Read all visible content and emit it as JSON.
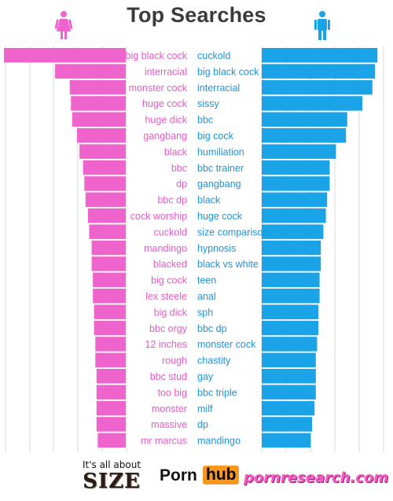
{
  "chart_data": {
    "type": "bar",
    "title": "Top Searches",
    "colors": {
      "female": "#ee64cc",
      "male": "#1aa3e7",
      "female_text": "#e55ac8",
      "male_text": "#1e93d8",
      "grid": "#d8d8d8"
    },
    "icons": {
      "female": "female-person-icon",
      "male": "male-person-icon"
    },
    "series": [
      {
        "name": "female",
        "labels": [
          "big black cock",
          "interracial",
          "monster cock",
          "huge cock",
          "huge dick",
          "gangbang",
          "black",
          "bbc",
          "dp",
          "bbc dp",
          "cock worship",
          "cuckold",
          "mandingo",
          "blacked",
          "big cock",
          "lex steele",
          "big dick",
          "bbc orgy",
          "12 inches",
          "rough",
          "bbc stud",
          "too big",
          "monster",
          "massive",
          "mr marcus"
        ],
        "values": [
          100,
          58,
          46,
          45,
          44,
          40,
          38,
          35,
          34,
          33,
          31,
          30,
          28,
          28,
          27,
          27,
          26,
          26,
          25,
          25,
          24,
          24,
          24,
          24,
          23
        ]
      },
      {
        "name": "male",
        "labels": [
          "cuckold",
          "big black cock",
          "interracial",
          "sissy",
          "bbc",
          "big cock",
          "humiliation",
          "bbc trainer",
          "gangbang",
          "black",
          "huge cock",
          "size comparison",
          "hypnosis",
          "black vs white",
          "teen",
          "anal",
          "sph",
          "bbc dp",
          "monster cock",
          "chastity",
          "gay",
          "bbc triple",
          "milf",
          "dp",
          "mandingo"
        ],
        "values": [
          92,
          90,
          88,
          80,
          68,
          67,
          59,
          54,
          54,
          52,
          51,
          49,
          47,
          47,
          46,
          46,
          45,
          45,
          44,
          43,
          43,
          43,
          42,
          40,
          39
        ]
      }
    ]
  },
  "footer": {
    "tagline_top": "It's all about",
    "tagline_big": "SIZE",
    "brand_a": "Porn",
    "brand_b": "hub",
    "brand_c": "pornresearch.com"
  }
}
